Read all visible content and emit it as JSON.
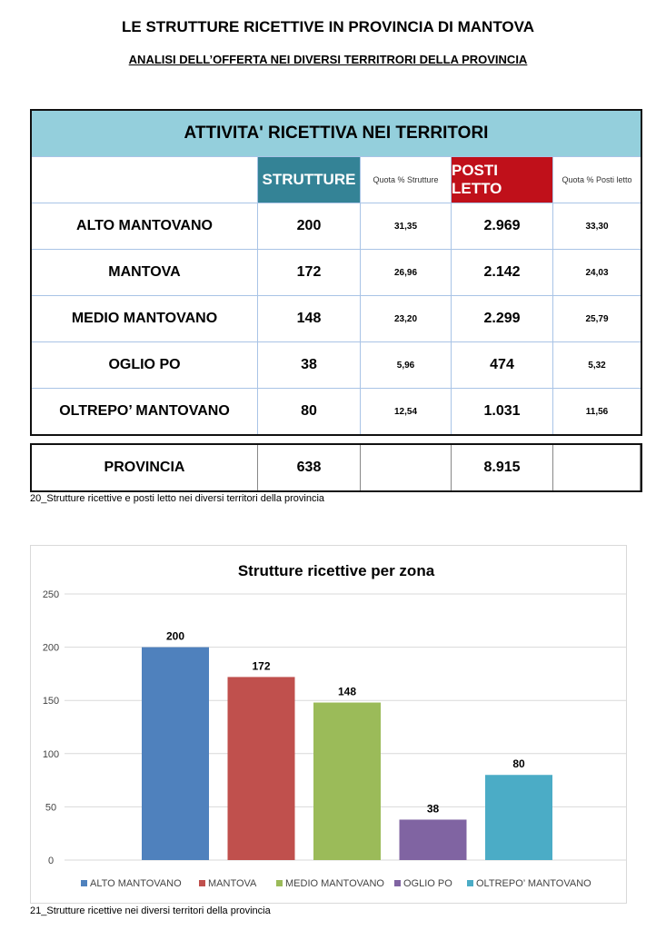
{
  "title": "LE STRUTTURE RICETTIVE IN PROVINCIA DI MANTOVA",
  "subtitle": "ANALISI DELL’OFFERTA NEI DIVERSI TERRITRORI DELLA PROVINCIA",
  "table": {
    "title": "ATTIVITA' RICETTIVA NEI TERRITORI",
    "headers": [
      "",
      "STRUTTURE",
      "Quota % Strutture",
      "POSTI LETTO",
      "Quota % Posti letto"
    ],
    "header_colors": {
      "title_bg": "#94cfdc",
      "strutture_bg": "#348396",
      "posti_bg": "#c0101a"
    },
    "rows": [
      [
        "ALTO MANTOVANO",
        "200",
        "31,35",
        "2.969",
        "33,30"
      ],
      [
        "MANTOVA",
        "172",
        "26,96",
        "2.142",
        "24,03"
      ],
      [
        "MEDIO MANTOVANO",
        "148",
        "23,20",
        "2.299",
        "25,79"
      ],
      [
        "OGLIO PO",
        "38",
        "5,96",
        "474",
        "5,32"
      ],
      [
        "OLTREPO’ MANTOVANO",
        "80",
        "12,54",
        "1.031",
        "11,56"
      ]
    ],
    "total": [
      "PROVINCIA",
      "638",
      "",
      "8.915",
      ""
    ]
  },
  "caption1": "20_Strutture ricettive e posti letto nei diversi territori della provincia",
  "chart_data": {
    "type": "bar",
    "title": "Strutture ricettive per zona",
    "ylim": [
      0,
      250
    ],
    "yticks": [
      "0",
      "50",
      "100",
      "150",
      "200",
      "250"
    ],
    "grid": true,
    "legend_placement": "bottom",
    "series": [
      {
        "name": "ALTO MANTOVANO",
        "value": 200,
        "color": "#4f81bd"
      },
      {
        "name": "MANTOVA",
        "value": 172,
        "color": "#c0504d"
      },
      {
        "name": "MEDIO MANTOVANO",
        "value": 148,
        "color": "#9bbb59"
      },
      {
        "name": "OGLIO PO",
        "value": 38,
        "color": "#8064a2"
      },
      {
        "name": "OLTREPO’ MANTOVANO",
        "value": 80,
        "color": "#4bacc6"
      }
    ]
  },
  "caption2": "21_Strutture ricettive nei diversi territori della provincia"
}
